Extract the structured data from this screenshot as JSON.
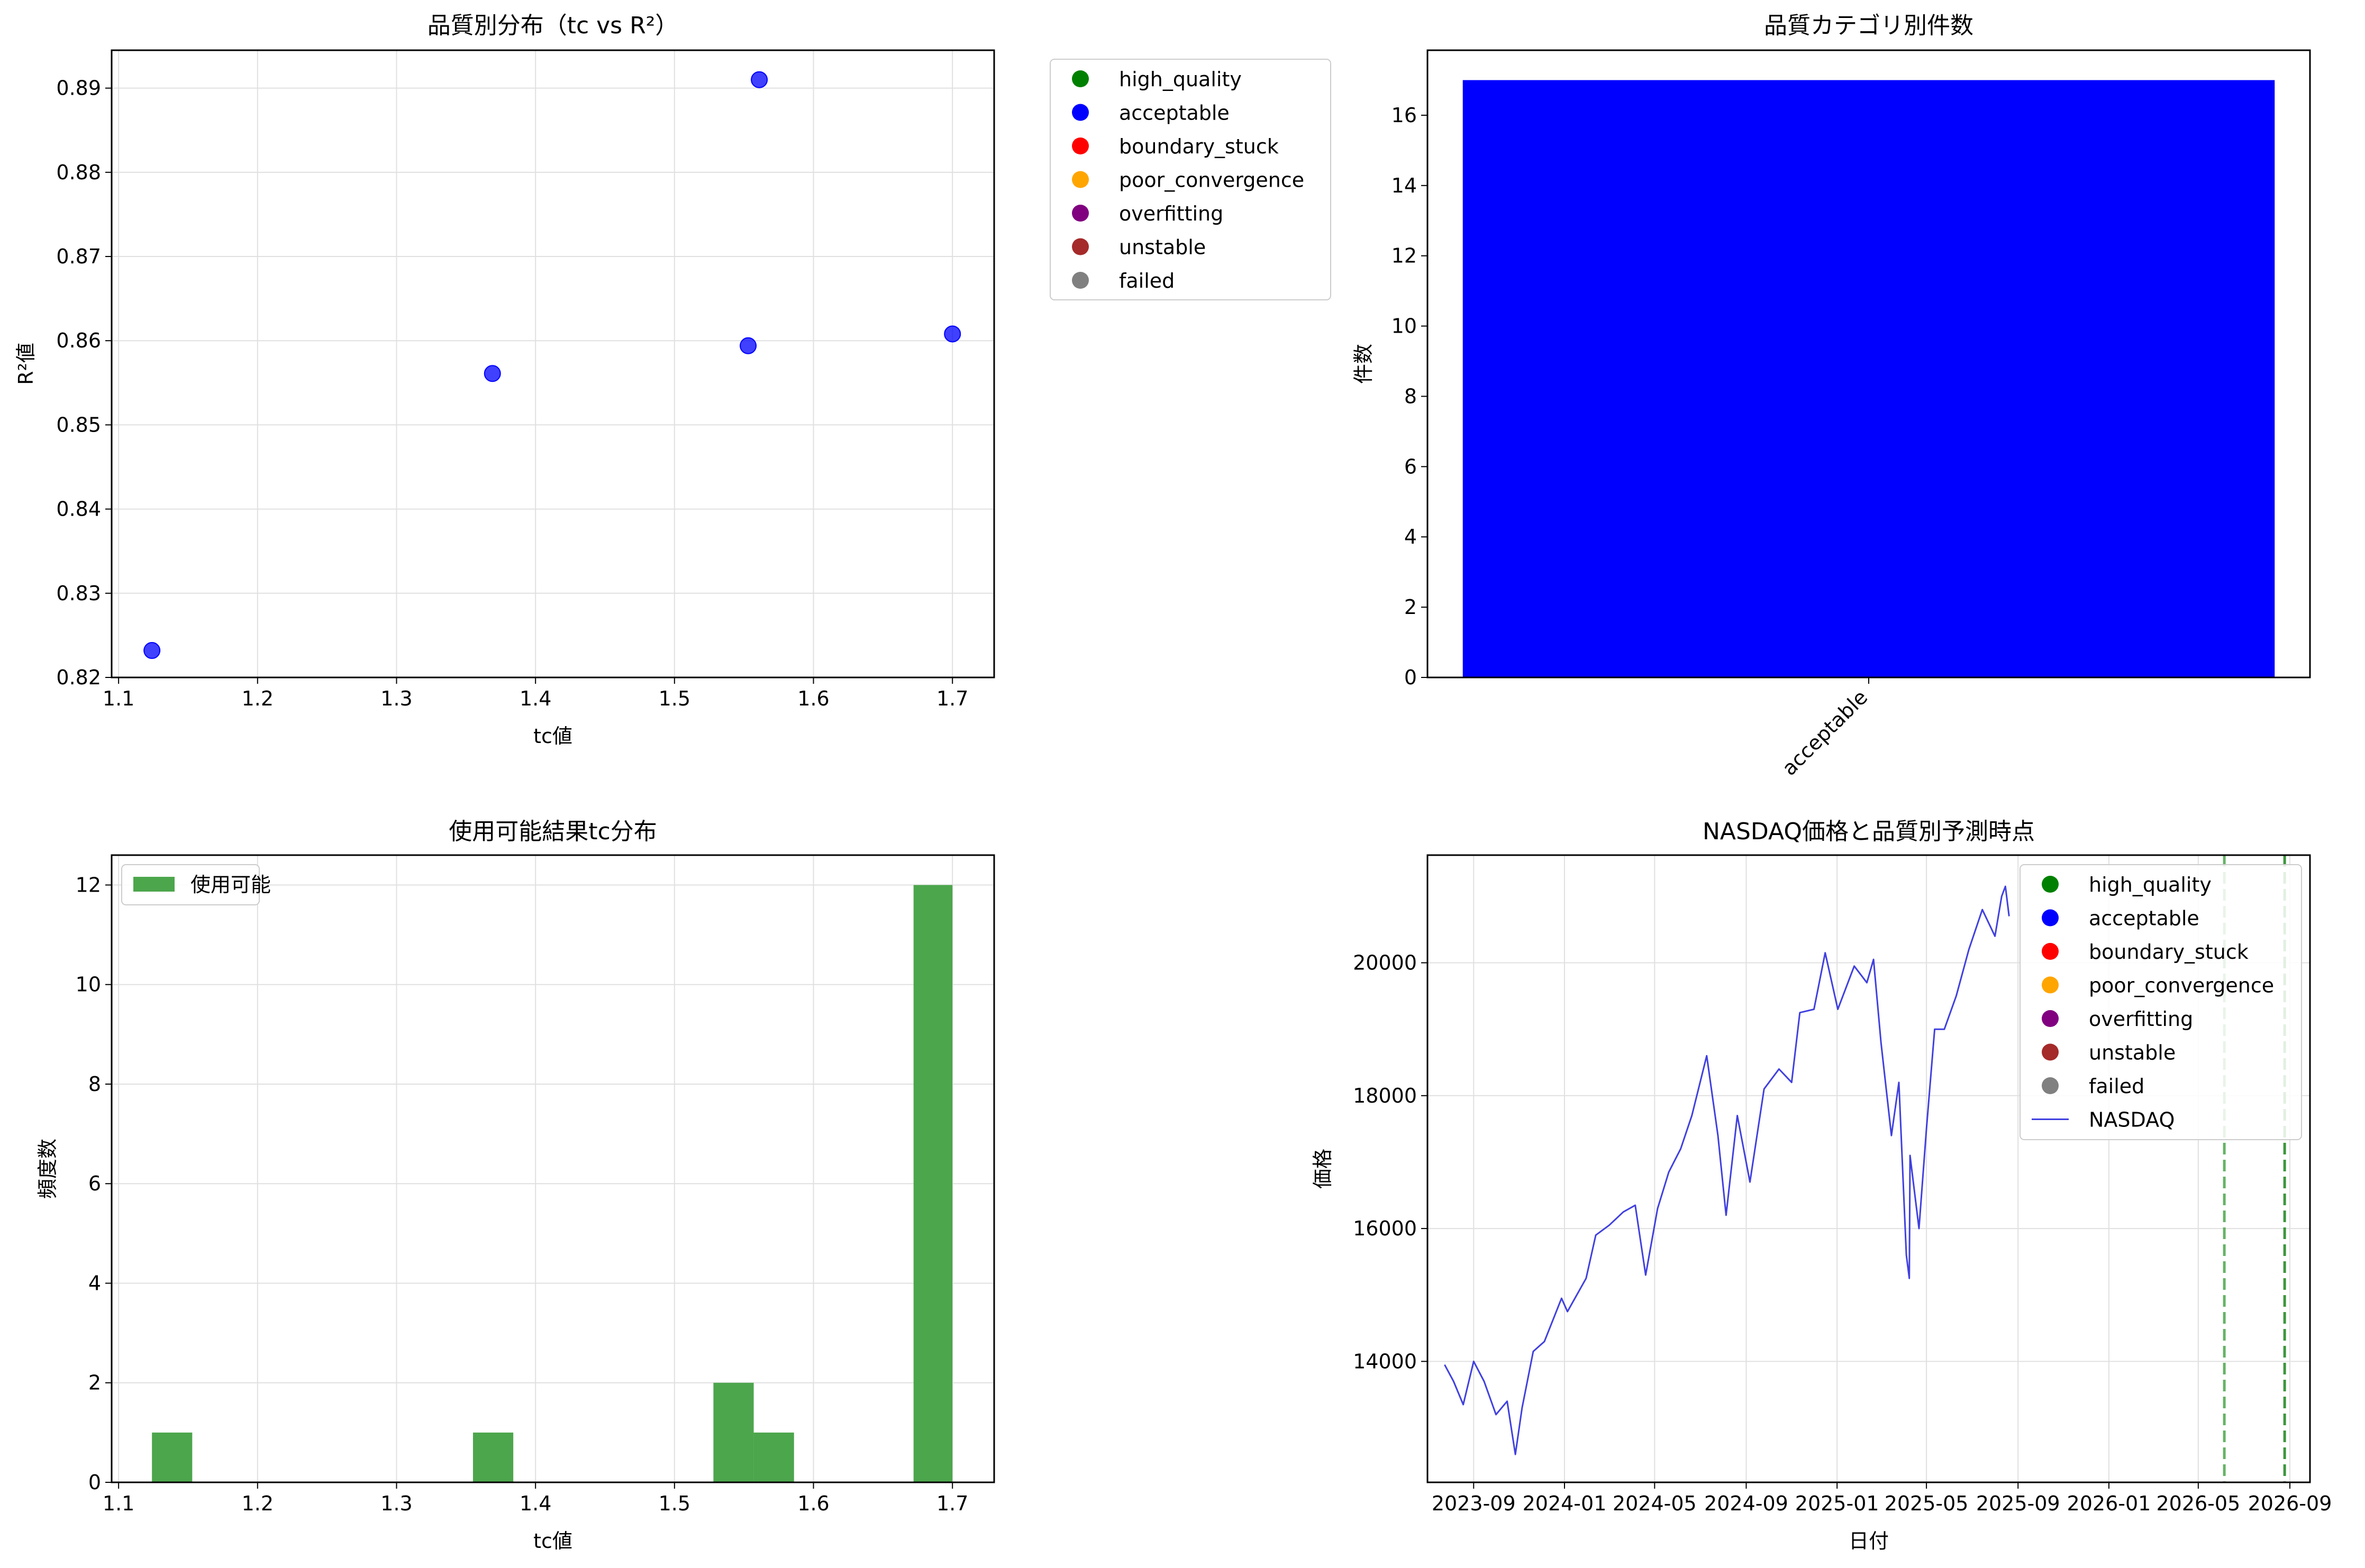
{
  "chart_data": [
    {
      "type": "scatter",
      "title": "品質別分布（tc vs R²）",
      "xlabel": "tc値",
      "ylabel": "R²値",
      "xlim": [
        1.095,
        1.73
      ],
      "ylim": [
        0.82,
        0.8945
      ],
      "xticks": [
        1.1,
        1.2,
        1.3,
        1.4,
        1.5,
        1.6,
        1.7
      ],
      "xtick_labels": [
        "1.1",
        "1.2",
        "1.3",
        "1.4",
        "1.5",
        "1.6",
        "1.7"
      ],
      "yticks": [
        0.82,
        0.83,
        0.84,
        0.85,
        0.86,
        0.87,
        0.88,
        0.89
      ],
      "ytick_labels": [
        "0.82",
        "0.83",
        "0.84",
        "0.85",
        "0.86",
        "0.87",
        "0.88",
        "0.89"
      ],
      "grid": true,
      "legend_position": "outside-right",
      "series": [
        {
          "name": "acceptable",
          "color": "#0000ff",
          "points": [
            [
              1.124,
              0.8232
            ],
            [
              1.369,
              0.8561
            ],
            [
              1.553,
              0.8594
            ],
            [
              1.561,
              0.891
            ],
            [
              1.7,
              0.8608
            ]
          ]
        }
      ],
      "legend": [
        {
          "name": "high_quality",
          "color": "#008000"
        },
        {
          "name": "acceptable",
          "color": "#0000ff"
        },
        {
          "name": "boundary_stuck",
          "color": "#ff0000"
        },
        {
          "name": "poor_convergence",
          "color": "#ffa500"
        },
        {
          "name": "overfitting",
          "color": "#800080"
        },
        {
          "name": "unstable",
          "color": "#a52a2a"
        },
        {
          "name": "failed",
          "color": "#808080"
        }
      ]
    },
    {
      "type": "bar",
      "title": "品質カテゴリ別件数",
      "xlabel": "",
      "ylabel": "件数",
      "categories": [
        "acceptable"
      ],
      "values": [
        17
      ],
      "colors": [
        "#0000ff"
      ],
      "ylim": [
        0,
        17.85
      ],
      "yticks": [
        0,
        2,
        4,
        6,
        8,
        10,
        12,
        14,
        16
      ],
      "ytick_labels": [
        "0",
        "2",
        "4",
        "6",
        "8",
        "10",
        "12",
        "14",
        "16"
      ],
      "grid": false
    },
    {
      "type": "bar",
      "title": "使用可能結果tc分布",
      "xlabel": "tc値",
      "ylabel": "頻度数",
      "xlim": [
        1.095,
        1.73
      ],
      "ylim": [
        0,
        12.6
      ],
      "xticks": [
        1.1,
        1.2,
        1.3,
        1.4,
        1.5,
        1.6,
        1.7
      ],
      "xtick_labels": [
        "1.1",
        "1.2",
        "1.3",
        "1.4",
        "1.5",
        "1.6",
        "1.7"
      ],
      "yticks": [
        0,
        2,
        4,
        6,
        8,
        10,
        12
      ],
      "ytick_labels": [
        "0",
        "2",
        "4",
        "6",
        "8",
        "10",
        "12"
      ],
      "grid": true,
      "legend_position": "upper-left",
      "series": [
        {
          "name": "使用可能",
          "color": "#4ca64c",
          "bins": [
            [
              1.124,
              1.153,
              1
            ],
            [
              1.355,
              1.384,
              1
            ],
            [
              1.528,
              1.557,
              2
            ],
            [
              1.557,
              1.586,
              1
            ],
            [
              1.672,
              1.7,
              12
            ]
          ]
        }
      ]
    },
    {
      "type": "line",
      "title": "NASDAQ価格と品質別予測時点",
      "xlabel": "日付",
      "ylabel": "価格",
      "x_start": "2023-07-01",
      "x_end": "2026-09-28",
      "ylim": [
        12180,
        21620
      ],
      "xticks": [
        "2023-09-01",
        "2024-01-01",
        "2024-05-01",
        "2024-09-01",
        "2025-01-01",
        "2025-05-01",
        "2025-09-01",
        "2026-01-01",
        "2026-05-01",
        "2026-09-01"
      ],
      "xtick_labels": [
        "2023-09",
        "2024-01",
        "2024-05",
        "2024-09",
        "2025-01",
        "2025-05",
        "2025-09",
        "2026-01",
        "2026-05",
        "2026-09"
      ],
      "yticks": [
        14000,
        16000,
        18000,
        20000
      ],
      "ytick_labels": [
        "14000",
        "16000",
        "18000",
        "20000"
      ],
      "grid": true,
      "legend_position": "upper-right",
      "series": [
        {
          "name": "NASDAQ",
          "color": "#4040e0",
          "points": [
            [
              "2023-07-24",
              13950
            ],
            [
              "2023-08-05",
              13700
            ],
            [
              "2023-08-18",
              13350
            ],
            [
              "2023-09-01",
              14000
            ],
            [
              "2023-09-15",
              13700
            ],
            [
              "2023-10-01",
              13200
            ],
            [
              "2023-10-16",
              13400
            ],
            [
              "2023-10-27",
              12600
            ],
            [
              "2023-11-05",
              13300
            ],
            [
              "2023-11-20",
              14150
            ],
            [
              "2023-12-05",
              14300
            ],
            [
              "2023-12-28",
              14950
            ],
            [
              "2024-01-05",
              14750
            ],
            [
              "2024-01-30",
              15250
            ],
            [
              "2024-02-12",
              15900
            ],
            [
              "2024-03-01",
              16050
            ],
            [
              "2024-03-20",
              16250
            ],
            [
              "2024-04-05",
              16350
            ],
            [
              "2024-04-19",
              15300
            ],
            [
              "2024-05-05",
              16300
            ],
            [
              "2024-05-20",
              16850
            ],
            [
              "2024-06-05",
              17200
            ],
            [
              "2024-06-20",
              17700
            ],
            [
              "2024-07-10",
              18600
            ],
            [
              "2024-07-25",
              17400
            ],
            [
              "2024-08-05",
              16200
            ],
            [
              "2024-08-20",
              17700
            ],
            [
              "2024-09-06",
              16700
            ],
            [
              "2024-09-25",
              18100
            ],
            [
              "2024-10-15",
              18400
            ],
            [
              "2024-11-01",
              18200
            ],
            [
              "2024-11-12",
              19250
            ],
            [
              "2024-12-01",
              19300
            ],
            [
              "2024-12-16",
              20150
            ],
            [
              "2025-01-02",
              19300
            ],
            [
              "2025-01-24",
              19950
            ],
            [
              "2025-02-10",
              19700
            ],
            [
              "2025-02-19",
              20050
            ],
            [
              "2025-03-01",
              18800
            ],
            [
              "2025-03-15",
              17400
            ],
            [
              "2025-03-25",
              18200
            ],
            [
              "2025-04-04",
              15600
            ],
            [
              "2025-04-08",
              15250
            ],
            [
              "2025-04-09",
              17100
            ],
            [
              "2025-04-21",
              16000
            ],
            [
              "2025-05-01",
              17500
            ],
            [
              "2025-05-12",
              19000
            ],
            [
              "2025-05-25",
              19000
            ],
            [
              "2025-06-10",
              19500
            ],
            [
              "2025-06-27",
              20200
            ],
            [
              "2025-07-15",
              20800
            ],
            [
              "2025-08-01",
              20400
            ],
            [
              "2025-08-10",
              21000
            ],
            [
              "2025-08-15",
              21150
            ],
            [
              "2025-08-20",
              20700
            ]
          ]
        }
      ],
      "prediction_lines": [
        {
          "date": "2026-06-05",
          "color": "#66b266"
        },
        {
          "date": "2026-08-25",
          "color": "#3c963c"
        }
      ],
      "legend": [
        {
          "name": "high_quality",
          "color": "#008000",
          "kind": "marker"
        },
        {
          "name": "acceptable",
          "color": "#0000ff",
          "kind": "marker"
        },
        {
          "name": "boundary_stuck",
          "color": "#ff0000",
          "kind": "marker"
        },
        {
          "name": "poor_convergence",
          "color": "#ffa500",
          "kind": "marker"
        },
        {
          "name": "overfitting",
          "color": "#800080",
          "kind": "marker"
        },
        {
          "name": "unstable",
          "color": "#a52a2a",
          "kind": "marker"
        },
        {
          "name": "failed",
          "color": "#808080",
          "kind": "marker"
        },
        {
          "name": "NASDAQ",
          "color": "#4040e0",
          "kind": "line"
        }
      ]
    }
  ]
}
